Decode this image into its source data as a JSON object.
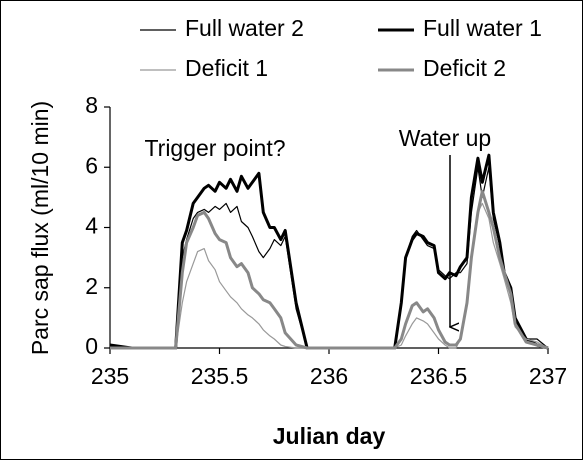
{
  "chart_data": {
    "type": "line",
    "y_label": "Parc sap flux (ml/10 min)",
    "x_label": "Julian day",
    "annotations": [
      "Trigger point?",
      "Water up"
    ],
    "xlim": [
      235,
      237
    ],
    "xticks": [
      235,
      235.5,
      236,
      236.5,
      237
    ],
    "ylim": [
      0,
      8
    ],
    "yticks": [
      0,
      2,
      4,
      6,
      8
    ],
    "x": [
      235,
      235.1,
      235.2,
      235.3,
      235.33,
      235.35,
      235.38,
      235.4,
      235.43,
      235.45,
      235.48,
      235.5,
      235.53,
      235.55,
      235.58,
      235.6,
      235.63,
      235.65,
      235.68,
      235.7,
      235.73,
      235.75,
      235.78,
      235.8,
      235.85,
      235.9,
      236,
      236.1,
      236.2,
      236.3,
      236.33,
      236.35,
      236.38,
      236.4,
      236.43,
      236.45,
      236.48,
      236.5,
      236.53,
      236.55,
      236.58,
      236.6,
      236.63,
      236.65,
      236.68,
      236.7,
      236.73,
      236.75,
      236.78,
      236.8,
      236.83,
      236.85,
      236.9,
      236.95,
      237
    ],
    "series": [
      {
        "name": "Full water 2",
        "color": "#000000",
        "line_width": 1.2,
        "values": [
          0.1,
          0,
          0,
          0,
          3.0,
          3.6,
          4.3,
          4.5,
          4.6,
          4.5,
          4.7,
          4.6,
          4.8,
          4.5,
          4.7,
          4.2,
          4.0,
          3.7,
          3.2,
          3.0,
          3.3,
          3.6,
          3.4,
          3.7,
          1.3,
          0,
          0,
          0,
          0,
          0,
          1.4,
          3.0,
          3.7,
          3.9,
          3.6,
          3.4,
          3.3,
          2.6,
          2.4,
          2.3,
          2.5,
          2.5,
          2.8,
          4.5,
          6.0,
          5.0,
          6.0,
          4.3,
          3.4,
          2.5,
          1.8,
          1.0,
          0.3,
          0.3,
          0
        ]
      },
      {
        "name": "Full water 1",
        "color": "#000000",
        "line_width": 3,
        "values": [
          0.1,
          0,
          0,
          0,
          3.5,
          3.9,
          4.8,
          5.0,
          5.3,
          5.4,
          5.2,
          5.5,
          5.3,
          5.6,
          5.2,
          5.7,
          5.3,
          5.5,
          5.8,
          4.5,
          4.0,
          4.0,
          3.6,
          3.9,
          1.5,
          0,
          0,
          0,
          0,
          0,
          1.5,
          3.0,
          3.6,
          3.8,
          3.7,
          3.5,
          3.4,
          2.5,
          2.3,
          2.5,
          2.4,
          2.7,
          3.0,
          5.0,
          6.3,
          5.5,
          6.4,
          4.5,
          3.5,
          2.5,
          2.0,
          1.0,
          0.3,
          0.1,
          0
        ]
      },
      {
        "name": "Deficit 1",
        "color": "#999999",
        "line_width": 1.2,
        "values": [
          0,
          0,
          0,
          0,
          1.5,
          2.2,
          2.8,
          3.2,
          3.3,
          2.9,
          2.6,
          2.2,
          1.9,
          1.7,
          1.5,
          1.3,
          1.1,
          1.0,
          0.8,
          0.6,
          0.4,
          0.3,
          0.1,
          0.05,
          0,
          0,
          0,
          0,
          0,
          0,
          0.1,
          0.4,
          0.8,
          1.0,
          0.9,
          0.8,
          0.5,
          0.3,
          0.1,
          0,
          0,
          0.3,
          1.5,
          3.0,
          4.5,
          4.8,
          4.3,
          3.5,
          2.8,
          2.3,
          1.5,
          0.7,
          0.3,
          0.2,
          0
        ]
      },
      {
        "name": "Deficit 2",
        "color": "#888888",
        "line_width": 3,
        "values": [
          0,
          0,
          0,
          0,
          2.5,
          3.5,
          4.0,
          4.4,
          4.5,
          4.3,
          3.8,
          3.6,
          3.5,
          3.0,
          2.7,
          2.8,
          2.5,
          2.0,
          1.8,
          1.6,
          1.5,
          1.3,
          1.0,
          0.5,
          0.1,
          0,
          0,
          0,
          0,
          0,
          0.3,
          0.8,
          1.4,
          1.5,
          1.2,
          1.3,
          1.0,
          0.6,
          0.2,
          0.1,
          0.1,
          0.3,
          1.5,
          3.0,
          4.5,
          5.2,
          4.5,
          4.0,
          3.0,
          2.5,
          1.8,
          0.8,
          0.2,
          0.1,
          0
        ]
      }
    ]
  }
}
